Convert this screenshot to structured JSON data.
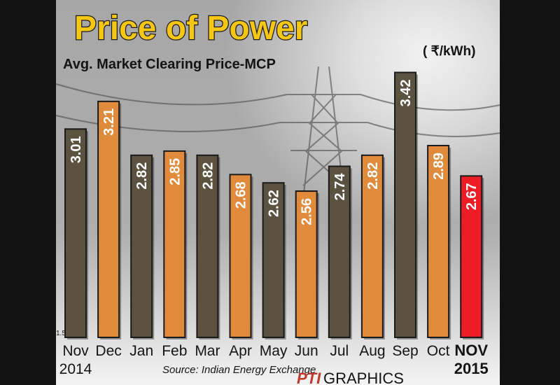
{
  "chart_data": {
    "type": "bar",
    "title": "Price of Power",
    "subtitle": "Avg. Market Clearing Price-MCP",
    "unit_label": "( ₹/kWh)",
    "axis_min_label": "1.5",
    "ylim": [
      1.5,
      3.6
    ],
    "categories": [
      "Nov",
      "Dec",
      "Jan",
      "Feb",
      "Mar",
      "Apr",
      "May",
      "Jun",
      "Jul",
      "Aug",
      "Sep",
      "Oct",
      "NOV"
    ],
    "year_labels": {
      "first": "2014",
      "last": "2015"
    },
    "values": [
      3.01,
      3.21,
      2.82,
      2.85,
      2.82,
      2.68,
      2.62,
      2.56,
      2.74,
      2.82,
      3.42,
      2.89,
      2.67
    ],
    "value_labels": [
      "3.01",
      "3.21",
      "2.82",
      "2.85",
      "2.82",
      "2.68",
      "2.62",
      "2.56",
      "2.74",
      "2.82",
      "3.42",
      "2.89",
      "2.67"
    ],
    "colors": [
      "#5b5240",
      "#e08a3c",
      "#5b5240",
      "#e08a3c",
      "#5b5240",
      "#e08a3c",
      "#5b5240",
      "#e08a3c",
      "#5b5240",
      "#e08a3c",
      "#5b5240",
      "#e08a3c",
      "#ee1c24"
    ],
    "highlight_index": 12,
    "source": "Source: Indian Energy Exchange",
    "credit": {
      "brand": "PTI",
      "label": "GRAPHICS"
    }
  }
}
